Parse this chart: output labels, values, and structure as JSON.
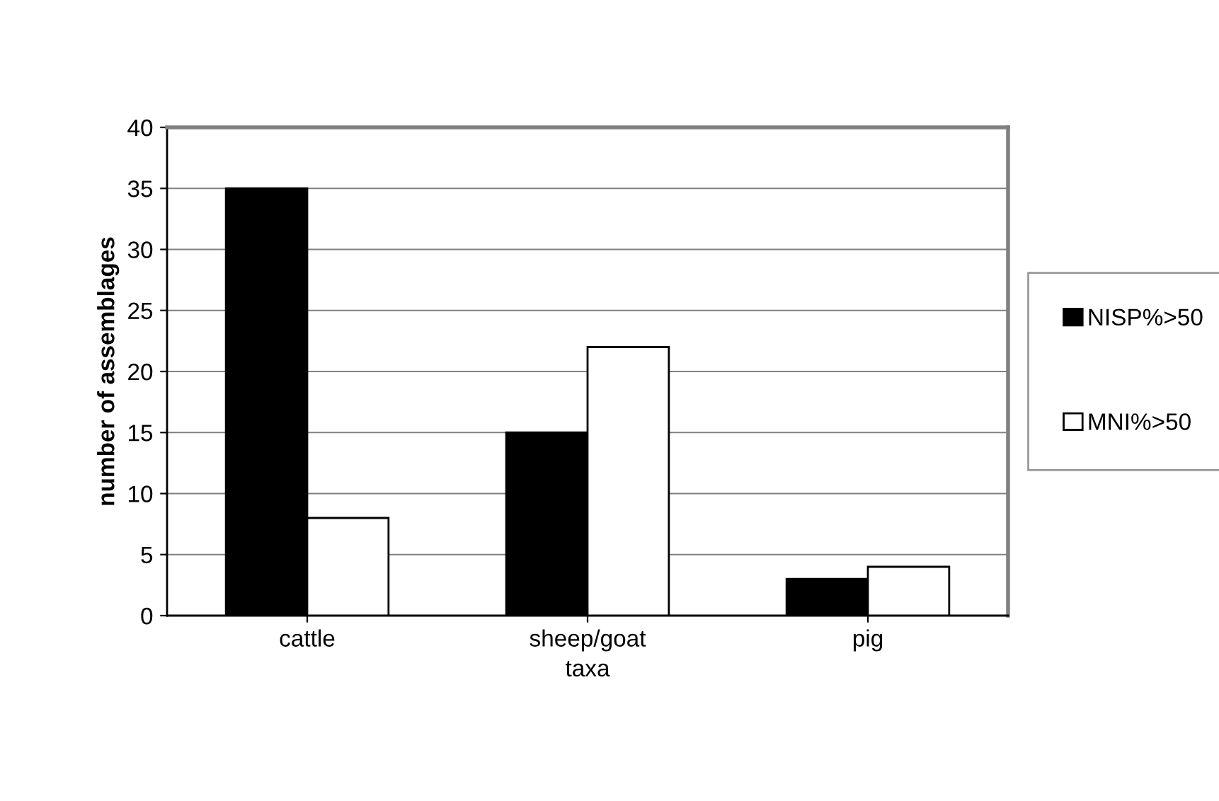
{
  "chart_data": {
    "type": "bar",
    "xlabel": "taxa",
    "ylabel": "number of assemblages",
    "categories": [
      "cattle",
      "sheep/goat",
      "pig"
    ],
    "series": [
      {
        "name": "NISP%>50",
        "color": "#000000",
        "values": [
          35,
          15,
          3
        ]
      },
      {
        "name": "MNI%>50",
        "color": "#ffffff",
        "values": [
          8,
          22,
          4
        ]
      }
    ],
    "ylim": [
      0,
      40
    ],
    "yticks": [
      0,
      5,
      10,
      15,
      20,
      25,
      30,
      35,
      40
    ],
    "grid": "y",
    "legend": "right"
  }
}
